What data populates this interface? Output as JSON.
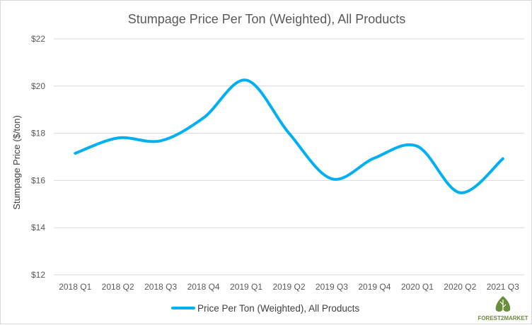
{
  "chart_data": {
    "type": "line",
    "title": "Stumpage Price Per Ton (Weighted), All Products",
    "xlabel": "",
    "ylabel": "Stumpage Price ($/ton)",
    "categories": [
      "2018 Q1",
      "2018 Q2",
      "2018 Q3",
      "2018 Q4",
      "2019 Q1",
      "2019 Q2",
      "2019 Q3",
      "2019 Q4",
      "2020 Q1",
      "2020 Q2",
      "2021 Q3"
    ],
    "series": [
      {
        "name": "Price Per Ton (Weighted), All Products",
        "values": [
          17.15,
          17.8,
          17.68,
          18.65,
          20.25,
          18.0,
          16.07,
          16.95,
          17.45,
          15.48,
          16.92
        ],
        "color": "#00b0f0"
      }
    ],
    "ylim": [
      12,
      22
    ],
    "yticks": [
      12,
      14,
      16,
      18,
      20,
      22
    ],
    "ytick_labels": [
      "$12",
      "$14",
      "$16",
      "$18",
      "$20",
      "$22"
    ],
    "grid": "horizontal",
    "legend_position": "bottom-center",
    "gridline_color": "#d9d9d9"
  },
  "logo": {
    "text": "FOREST2MARKET",
    "icon": "tree-icon"
  }
}
